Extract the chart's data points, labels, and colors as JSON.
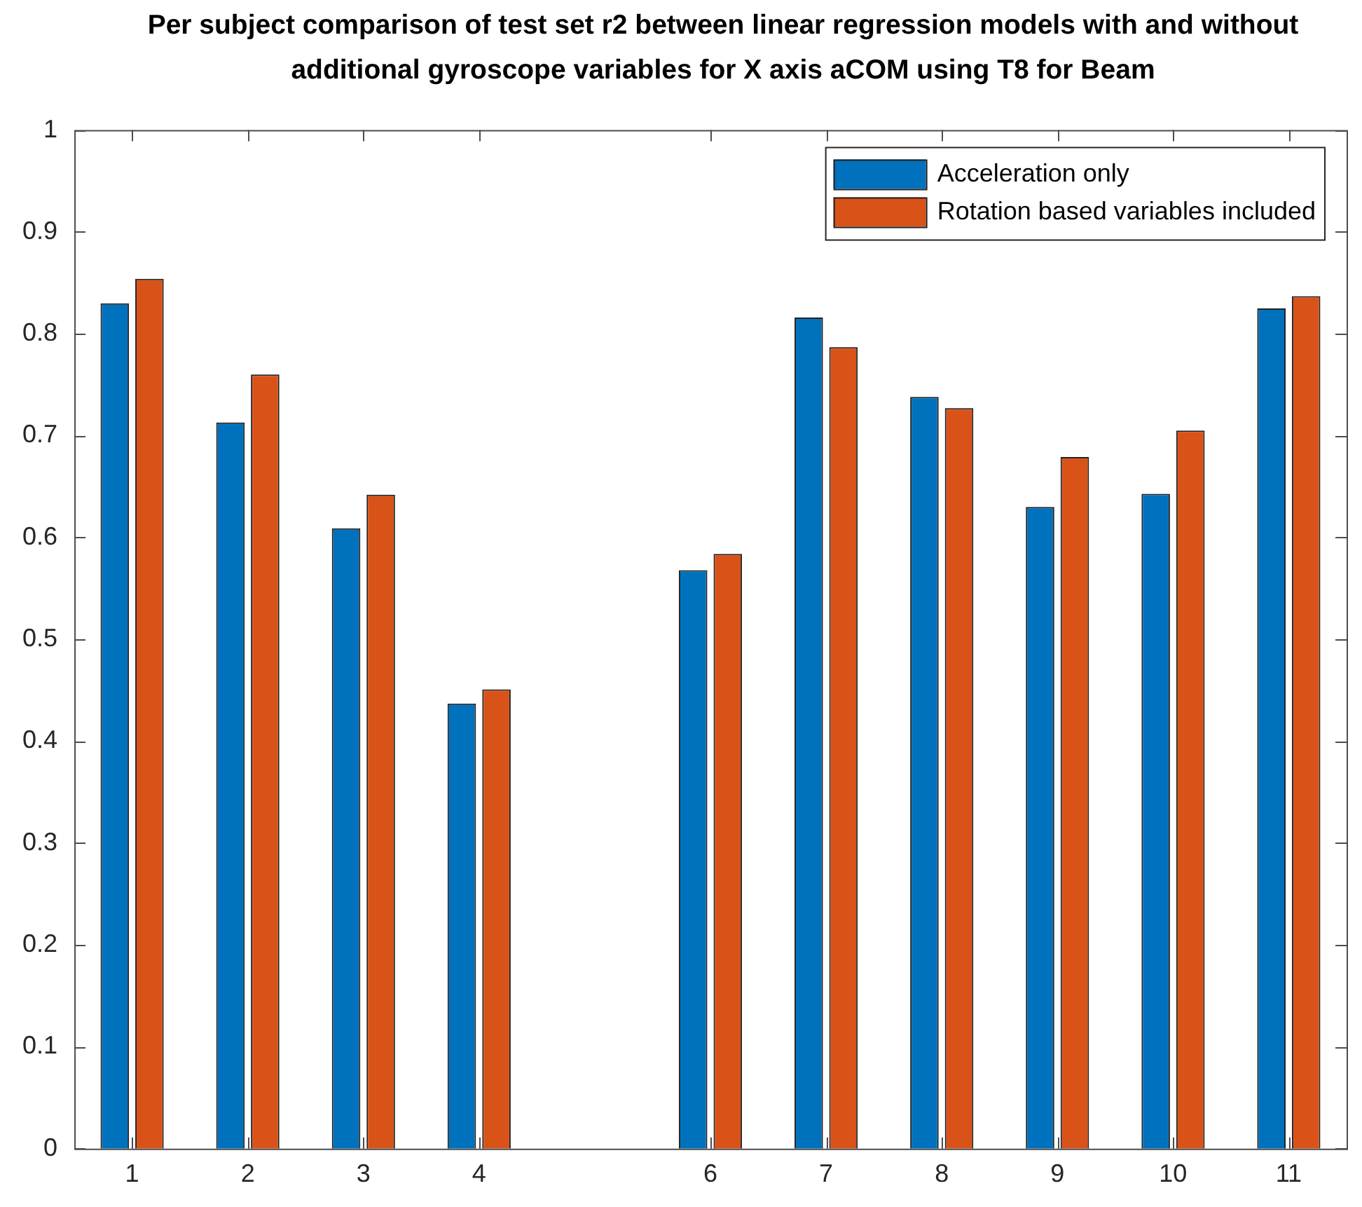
{
  "chart_data": {
    "type": "bar",
    "title": "Per subject comparison of test set r2 between linear regression models with and without additional gyroscope variables for X axis aCOM using T8 for Beam",
    "categories": [
      "1",
      "2",
      "3",
      "4",
      null,
      "6",
      "7",
      "8",
      "9",
      "10",
      "11"
    ],
    "series": [
      {
        "name": "Acceleration only",
        "color": "#0072bd",
        "values": [
          0.83,
          0.713,
          0.609,
          0.437,
          null,
          0.568,
          0.816,
          0.738,
          0.63,
          0.643,
          0.825
        ]
      },
      {
        "name": "Rotation based variables included",
        "color": "#d95319",
        "values": [
          0.854,
          0.76,
          0.642,
          0.451,
          null,
          0.584,
          0.787,
          0.727,
          0.679,
          0.705,
          0.837
        ]
      }
    ],
    "ylim": [
      0,
      1
    ],
    "yticks": [
      0,
      0.1,
      0.2,
      0.3,
      0.4,
      0.5,
      0.6,
      0.7,
      0.8,
      0.9,
      1
    ],
    "grid": false,
    "legend": "top right"
  }
}
